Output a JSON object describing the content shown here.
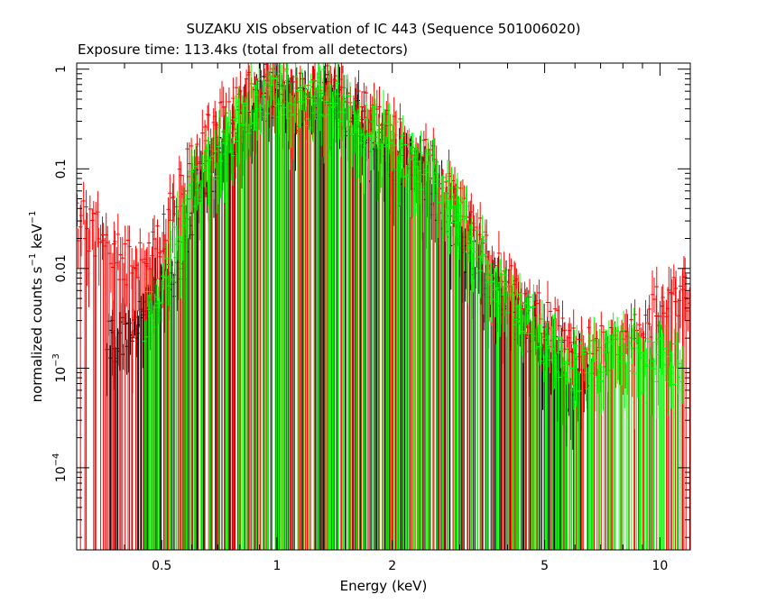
{
  "chart_data": {
    "type": "scatter",
    "title": "SUZAKU XIS observation of IC 443 (Sequence 501006020)",
    "subtitle": "Exposure time: 113.4ks (total from all detectors)",
    "xlabel": "Energy (keV)",
    "ylabel_parts": {
      "base": "normalized counts s",
      "exp1": "−1",
      "mid": " keV",
      "exp2": "−1"
    },
    "x_scale": "log",
    "y_scale": "log",
    "xlim": [
      0.3,
      12
    ],
    "ylim": [
      1.5e-05,
      1.15
    ],
    "x_ticks": [
      {
        "value": 0.5,
        "label": "0.5"
      },
      {
        "value": 1,
        "label": "1"
      },
      {
        "value": 2,
        "label": "2"
      },
      {
        "value": 5,
        "label": "5"
      },
      {
        "value": 10,
        "label": "10"
      }
    ],
    "y_ticks": [
      {
        "value": 1,
        "label": "1",
        "exp": ""
      },
      {
        "value": 0.1,
        "label": "0.1",
        "exp": ""
      },
      {
        "value": 0.01,
        "label": "0.01",
        "exp": ""
      },
      {
        "value": 0.001,
        "label": "10",
        "exp": "−3"
      },
      {
        "value": 0.0001,
        "label": "10",
        "exp": "−4"
      }
    ],
    "series": [
      {
        "color": "#000000",
        "energy_range": [
          0.36,
          6.5
        ],
        "points": [
          [
            0.38,
            0.002
          ],
          [
            0.45,
            0.003
          ],
          [
            0.55,
            0.01
          ],
          [
            0.62,
            0.06
          ],
          [
            0.7,
            0.12
          ],
          [
            0.8,
            0.25
          ],
          [
            0.9,
            0.45
          ],
          [
            0.95,
            0.55
          ],
          [
            1.0,
            0.6
          ],
          [
            1.1,
            0.45
          ],
          [
            1.2,
            0.35
          ],
          [
            1.3,
            0.55
          ],
          [
            1.4,
            0.5
          ],
          [
            1.6,
            0.3
          ],
          [
            1.8,
            0.2
          ],
          [
            2.0,
            0.12
          ],
          [
            2.3,
            0.09
          ],
          [
            2.6,
            0.05
          ],
          [
            3.0,
            0.02
          ],
          [
            3.5,
            0.008
          ],
          [
            4.0,
            0.004
          ],
          [
            5.0,
            0.0015
          ],
          [
            6.0,
            0.0008
          ]
        ]
      },
      {
        "color": "#ff0000",
        "energy_range": [
          0.3,
          12
        ],
        "points": [
          [
            0.3,
            0.03
          ],
          [
            0.35,
            0.02
          ],
          [
            0.4,
            0.012
          ],
          [
            0.45,
            0.012
          ],
          [
            0.5,
            0.02
          ],
          [
            0.55,
            0.05
          ],
          [
            0.6,
            0.12
          ],
          [
            0.65,
            0.2
          ],
          [
            0.7,
            0.25
          ],
          [
            0.8,
            0.45
          ],
          [
            0.9,
            0.7
          ],
          [
            1.0,
            0.9
          ],
          [
            1.1,
            0.6
          ],
          [
            1.2,
            0.5
          ],
          [
            1.3,
            0.7
          ],
          [
            1.4,
            0.6
          ],
          [
            1.6,
            0.4
          ],
          [
            1.8,
            0.3
          ],
          [
            2.0,
            0.2
          ],
          [
            2.3,
            0.15
          ],
          [
            2.6,
            0.09
          ],
          [
            3.0,
            0.04
          ],
          [
            3.5,
            0.015
          ],
          [
            4.0,
            0.007
          ],
          [
            5.0,
            0.003
          ],
          [
            6.0,
            0.0015
          ],
          [
            7.0,
            0.0015
          ],
          [
            8.0,
            0.002
          ],
          [
            9.0,
            0.003
          ],
          [
            10.0,
            0.004
          ],
          [
            11.0,
            0.005
          ],
          [
            12.0,
            0.006
          ]
        ]
      },
      {
        "color": "#00ff00",
        "energy_range": [
          0.45,
          11.5
        ],
        "points": [
          [
            0.45,
            0.003
          ],
          [
            0.5,
            0.006
          ],
          [
            0.55,
            0.02
          ],
          [
            0.6,
            0.06
          ],
          [
            0.7,
            0.15
          ],
          [
            0.8,
            0.3
          ],
          [
            0.9,
            0.5
          ],
          [
            1.0,
            0.6
          ],
          [
            1.1,
            0.5
          ],
          [
            1.2,
            0.4
          ],
          [
            1.3,
            0.6
          ],
          [
            1.4,
            0.55
          ],
          [
            1.6,
            0.35
          ],
          [
            1.8,
            0.25
          ],
          [
            2.0,
            0.18
          ],
          [
            2.3,
            0.12
          ],
          [
            2.6,
            0.08
          ],
          [
            3.0,
            0.035
          ],
          [
            3.5,
            0.012
          ],
          [
            4.0,
            0.005
          ],
          [
            5.0,
            0.0018
          ],
          [
            6.0,
            0.001
          ],
          [
            7.0,
            0.0012
          ],
          [
            8.0,
            0.0015
          ],
          [
            9.0,
            0.0015
          ],
          [
            10.0,
            0.0012
          ],
          [
            11.0,
            0.001
          ]
        ]
      }
    ]
  }
}
